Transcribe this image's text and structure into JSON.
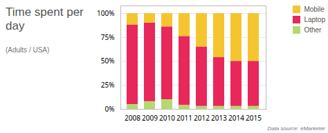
{
  "chart_data": {
    "type": "bar",
    "title": "Time spent per day",
    "subtitle": "(Adults / USA)",
    "source": "Data source: eMarketer",
    "categories": [
      "2008",
      "2009",
      "2010",
      "2011",
      "2012",
      "2013",
      "2014",
      "2015"
    ],
    "series": [
      {
        "name": "Mobile",
        "color": "#f5c530",
        "values": [
          12,
          10,
          14,
          24,
          35,
          46,
          50,
          50
        ]
      },
      {
        "name": "Laptop",
        "color": "#e8275a",
        "values": [
          83,
          82,
          76,
          72,
          62,
          51,
          47,
          47
        ]
      },
      {
        "name": "Other",
        "color": "#b5d870",
        "values": [
          5,
          8,
          10,
          4,
          3,
          3,
          3,
          3
        ]
      }
    ],
    "stacked": true,
    "ylim": [
      0,
      108
    ],
    "yticks": [
      {
        "value": 0,
        "label": "0%"
      },
      {
        "value": 25,
        "label": "25%"
      },
      {
        "value": 50,
        "label": "50%"
      },
      {
        "value": 75,
        "label": "75%"
      },
      {
        "value": 100,
        "label": "100%"
      }
    ],
    "grid": true,
    "legend": "top-right"
  }
}
